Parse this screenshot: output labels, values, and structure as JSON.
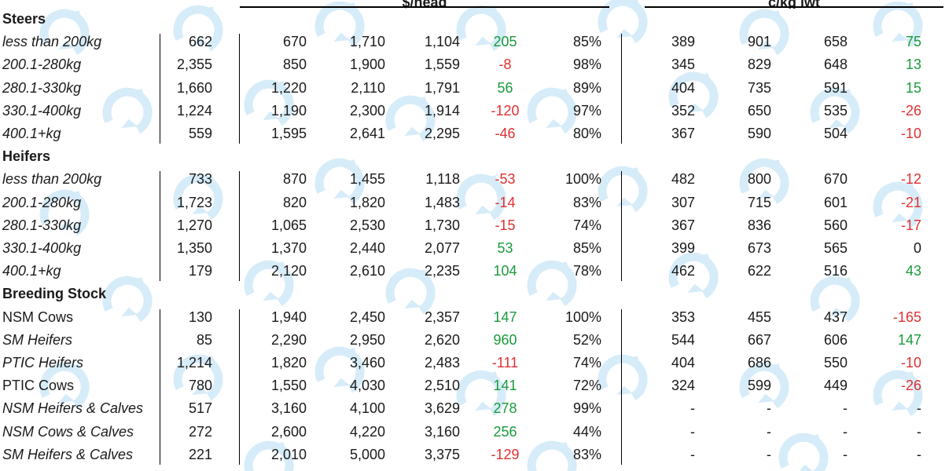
{
  "headers": {
    "price_group": "$/head",
    "weight_group": "c/kg lwt"
  },
  "colors": {
    "positive": "#1a9a3c",
    "negative": "#e03030"
  },
  "sections": [
    {
      "title": "Steers",
      "rows": [
        {
          "label": "less than 200kg",
          "italic": true,
          "c1": "662",
          "c2": "670",
          "c3": "1,710",
          "c4": "1,104",
          "change": "205",
          "pct": "85%",
          "w1": "389",
          "w2": "901",
          "w3": "658",
          "wchange": "75"
        },
        {
          "label": "200.1-280kg",
          "italic": true,
          "c1": "2,355",
          "c2": "850",
          "c3": "1,900",
          "c4": "1,559",
          "change": "-8",
          "pct": "98%",
          "w1": "345",
          "w2": "829",
          "w3": "648",
          "wchange": "13"
        },
        {
          "label": "280.1-330kg",
          "italic": true,
          "c1": "1,660",
          "c2": "1,220",
          "c3": "2,110",
          "c4": "1,791",
          "change": "56",
          "pct": "89%",
          "w1": "404",
          "w2": "735",
          "w3": "591",
          "wchange": "15"
        },
        {
          "label": "330.1-400kg",
          "italic": true,
          "c1": "1,224",
          "c2": "1,190",
          "c3": "2,300",
          "c4": "1,914",
          "change": "-120",
          "pct": "97%",
          "w1": "352",
          "w2": "650",
          "w3": "535",
          "wchange": "-26"
        },
        {
          "label": "400.1+kg",
          "italic": true,
          "c1": "559",
          "c2": "1,595",
          "c3": "2,641",
          "c4": "2,295",
          "change": "-46",
          "pct": "80%",
          "w1": "367",
          "w2": "590",
          "w3": "504",
          "wchange": "-10"
        }
      ]
    },
    {
      "title": "Heifers",
      "rows": [
        {
          "label": "less than 200kg",
          "italic": true,
          "c1": "733",
          "c2": "870",
          "c3": "1,455",
          "c4": "1,118",
          "change": "-53",
          "pct": "100%",
          "w1": "482",
          "w2": "800",
          "w3": "670",
          "wchange": "-12"
        },
        {
          "label": "200.1-280kg",
          "italic": true,
          "c1": "1,723",
          "c2": "820",
          "c3": "1,820",
          "c4": "1,483",
          "change": "-14",
          "pct": "83%",
          "w1": "307",
          "w2": "715",
          "w3": "601",
          "wchange": "-21"
        },
        {
          "label": "280.1-330kg",
          "italic": true,
          "c1": "1,270",
          "c2": "1,065",
          "c3": "2,530",
          "c4": "1,730",
          "change": "-15",
          "pct": "74%",
          "w1": "367",
          "w2": "836",
          "w3": "560",
          "wchange": "-17"
        },
        {
          "label": "330.1-400kg",
          "italic": true,
          "c1": "1,350",
          "c2": "1,370",
          "c3": "2,440",
          "c4": "2,077",
          "change": "53",
          "pct": "85%",
          "w1": "399",
          "w2": "673",
          "w3": "565",
          "wchange": "0"
        },
        {
          "label": "400.1+kg",
          "italic": true,
          "c1": "179",
          "c2": "2,120",
          "c3": "2,610",
          "c4": "2,235",
          "change": "104",
          "pct": "78%",
          "w1": "462",
          "w2": "622",
          "w3": "516",
          "wchange": "43"
        }
      ]
    },
    {
      "title": "Breeding Stock",
      "rows": [
        {
          "label": "NSM Cows",
          "italic": false,
          "c1": "130",
          "c2": "1,940",
          "c3": "2,450",
          "c4": "2,357",
          "change": "147",
          "pct": "100%",
          "w1": "353",
          "w2": "455",
          "w3": "437",
          "wchange": "-165"
        },
        {
          "label": "SM Heifers",
          "italic": true,
          "c1": "85",
          "c2": "2,290",
          "c3": "2,950",
          "c4": "2,620",
          "change": "960",
          "pct": "52%",
          "w1": "544",
          "w2": "667",
          "w3": "606",
          "wchange": "147"
        },
        {
          "label": "PTIC Heifers",
          "italic": true,
          "c1": "1,214",
          "c2": "1,820",
          "c3": "3,460",
          "c4": "2,483",
          "change": "-111",
          "pct": "74%",
          "w1": "404",
          "w2": "686",
          "w3": "550",
          "wchange": "-10"
        },
        {
          "label": "PTIC Cows",
          "italic": false,
          "c1": "780",
          "c2": "1,550",
          "c3": "4,030",
          "c4": "2,510",
          "change": "141",
          "pct": "72%",
          "w1": "324",
          "w2": "599",
          "w3": "449",
          "wchange": "-26"
        },
        {
          "label": "NSM Heifers & Calves",
          "italic": true,
          "c1": "517",
          "c2": "3,160",
          "c3": "4,100",
          "c4": "3,629",
          "change": "278",
          "pct": "99%",
          "w1": "-",
          "w2": "-",
          "w3": "-",
          "wchange": "-"
        },
        {
          "label": "NSM Cows & Calves",
          "italic": true,
          "c1": "272",
          "c2": "2,600",
          "c3": "4,220",
          "c4": "3,160",
          "change": "256",
          "pct": "44%",
          "w1": "-",
          "w2": "-",
          "w3": "-",
          "wchange": "-"
        },
        {
          "label": "SM Heifers & Calves",
          "italic": true,
          "c1": "221",
          "c2": "2,010",
          "c3": "5,000",
          "c4": "3,375",
          "change": "-129",
          "pct": "83%",
          "w1": "-",
          "w2": "-",
          "w3": "-",
          "wchange": "-"
        }
      ]
    }
  ]
}
